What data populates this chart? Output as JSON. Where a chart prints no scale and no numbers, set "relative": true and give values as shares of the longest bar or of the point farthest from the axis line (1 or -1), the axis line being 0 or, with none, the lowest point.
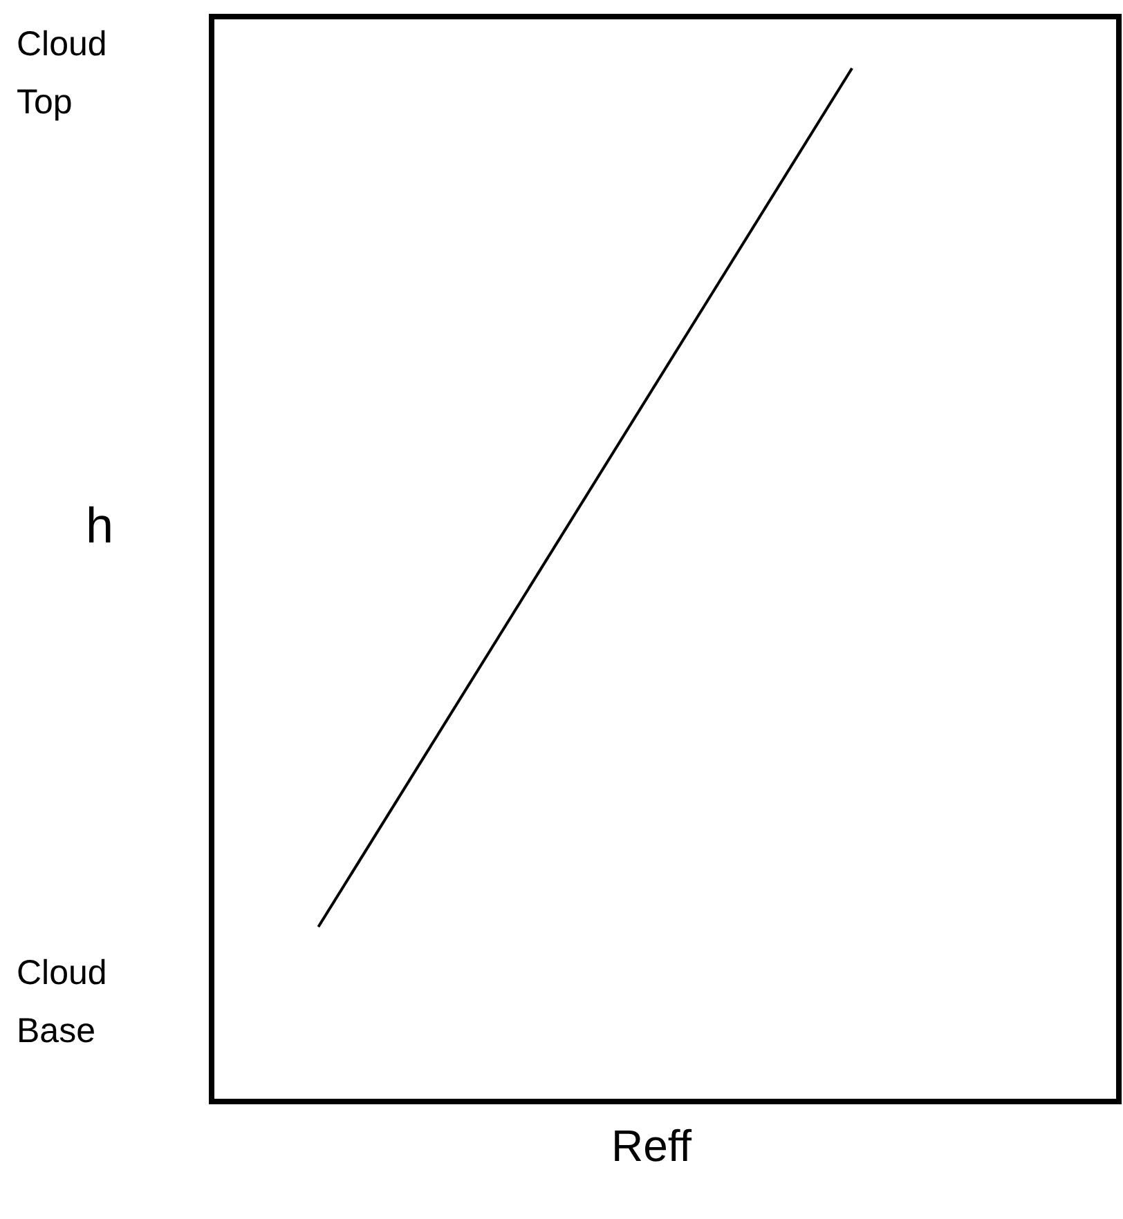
{
  "chart_data": {
    "type": "line",
    "relative": true,
    "xlabel": "Reff",
    "ylabel": "h",
    "annotations": [
      "Cloud Top",
      "Cloud Base"
    ],
    "categories": [
      null,
      null,
      null,
      null,
      null,
      null,
      null,
      null,
      null,
      null,
      null,
      null,
      null,
      null,
      null,
      null,
      null,
      null
    ],
    "series": [
      {
        "color": "#000000",
        "values": [
          null,
          null,
          0.169,
          null,
          null,
          null,
          null,
          null,
          null,
          null,
          null,
          null,
          1,
          null,
          null,
          null,
          null,
          null
        ]
      }
    ],
    "marker": "none",
    "legend": false
  }
}
